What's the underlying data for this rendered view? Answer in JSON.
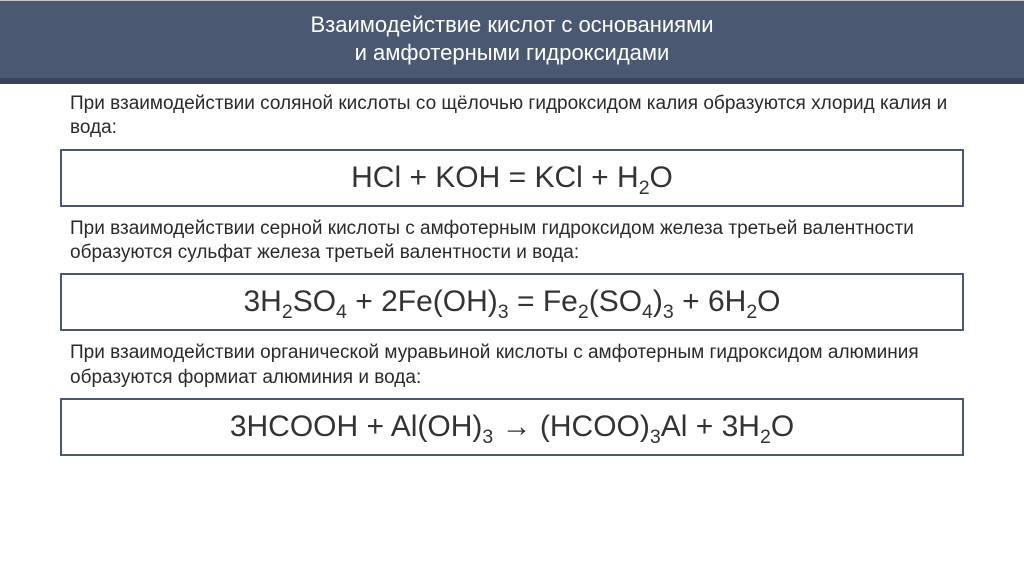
{
  "header": {
    "line1": "Взаимодействие кислот с основаниями",
    "line2": "и амфотерными гидроксидами"
  },
  "blocks": [
    {
      "desc": "При взаимодействии соляной кислоты со щёлочью гидроксидом калия образуются хлорид калия и вода:",
      "equation_html": "HCl + KOH = KCl + H<sub>2</sub>O"
    },
    {
      "desc": "При взаимодействии серной кислоты с амфотерным гидроксидом железа третьей валентности образуются сульфат железа третьей валентности и вода:",
      "equation_html": "3H<sub>2</sub>SO<sub>4</sub> + 2Fe(OH)<sub>3</sub> = Fe<sub>2</sub>(SO<sub>4</sub>)<sub>3</sub> + 6H<sub>2</sub>O"
    },
    {
      "desc": "При взаимодействии органической муравьиной кислоты с амфотерным гидроксидом алюминия образуются формиат алюминия и вода:",
      "equation_html": "3HCOOH + Al(OH)<sub>3</sub> → (HCOO)<sub>3</sub>Al + 3H<sub>2</sub>O"
    }
  ],
  "colors": {
    "header_bg": "#4a5872",
    "header_border": "#3a4458",
    "box_border": "#4a5872",
    "text": "#2a2a2a",
    "bg": "#ffffff"
  },
  "typography": {
    "header_fontsize": 22,
    "desc_fontsize": 19,
    "equation_fontsize": 30
  }
}
